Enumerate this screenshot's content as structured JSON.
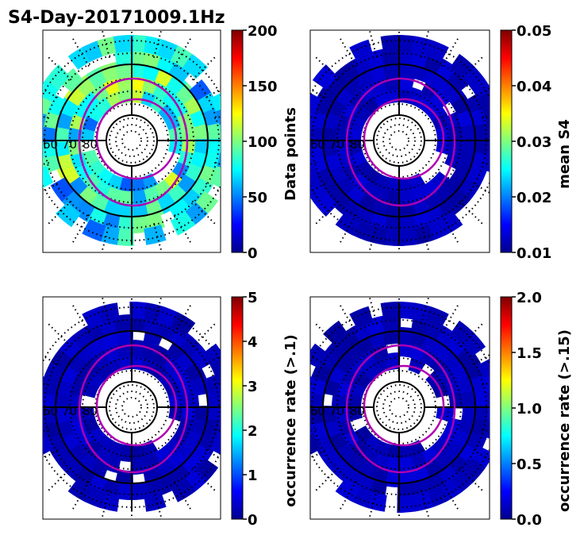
{
  "figure": {
    "title": "S4-Day-20171009.1Hz"
  },
  "chart_data": [
    {
      "type": "heatmap",
      "projection": "polar",
      "panel": "top-left",
      "lat_labels": [
        "60",
        "70",
        "80"
      ],
      "colorbar": {
        "label": "Data points",
        "colormap": "jet",
        "range": [
          0,
          200
        ],
        "ticks": [
          "0",
          "50",
          "100",
          "150",
          "200"
        ]
      },
      "typical_values": "mostly 10-70; up to ~100 in high-latitude ring"
    },
    {
      "type": "heatmap",
      "projection": "polar",
      "panel": "top-right",
      "lat_labels": [
        "60",
        "70",
        "80"
      ],
      "colorbar": {
        "label": "mean S4",
        "colormap": "jet",
        "range": [
          0.01,
          0.05
        ],
        "ticks": [
          "0.01",
          "0.02",
          "0.03",
          "0.04",
          "0.05"
        ]
      },
      "typical_values": "nearly all cells ~0.01"
    },
    {
      "type": "heatmap",
      "projection": "polar",
      "panel": "bottom-left",
      "lat_labels": [
        "60",
        "70",
        "80"
      ],
      "colorbar": {
        "label": "occurrence rate (>.1)",
        "colormap": "jet",
        "range": [
          0,
          5
        ],
        "ticks": [
          "0",
          "1",
          "2",
          "3",
          "4",
          "5"
        ]
      },
      "typical_values": "nearly all cells 0"
    },
    {
      "type": "heatmap",
      "projection": "polar",
      "panel": "bottom-right",
      "lat_labels": [
        "60",
        "70",
        "80"
      ],
      "colorbar": {
        "label": "occurrence rate (>.15)",
        "colormap": "jet",
        "range": [
          0.0,
          2.0
        ],
        "ticks": [
          "0.0",
          "0.5",
          "1.0",
          "1.5",
          "2.0"
        ]
      },
      "typical_values": "nearly all cells 0"
    }
  ]
}
